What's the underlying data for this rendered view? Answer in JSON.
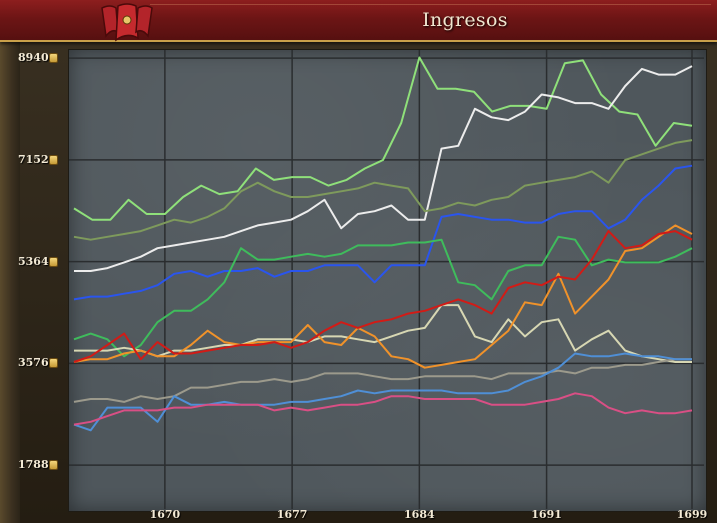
{
  "window": {
    "title": "Ingresos"
  },
  "chart_data": {
    "type": "line",
    "title": "Ingresos",
    "x_ticks": [
      1670,
      1677,
      1684,
      1691,
      1699
    ],
    "y_ticks": [
      "8940",
      "7152",
      "5364",
      "3576",
      "1788"
    ],
    "y_values": [
      8940,
      7152,
      5364,
      3576,
      1788
    ],
    "xlim": [
      1665,
      1699
    ],
    "ylim": [
      1000,
      9100
    ],
    "grid": true,
    "series": [
      {
        "color": "#8fe07a",
        "values": [
          6300,
          6100,
          6100,
          6450,
          6200,
          6200,
          6500,
          6700,
          6550,
          6600,
          7000,
          6800,
          6850,
          6850,
          6700,
          6800,
          7000,
          7150,
          7800,
          8950,
          8400,
          8400,
          8350,
          8000,
          8100,
          8100,
          8050,
          8850,
          8900,
          8300,
          8000,
          7950,
          7400,
          7800,
          7750
        ]
      },
      {
        "color": "#ececec",
        "values": [
          5200,
          5200,
          5250,
          5350,
          5450,
          5600,
          5650,
          5700,
          5750,
          5800,
          5900,
          6000,
          6050,
          6100,
          6250,
          6450,
          5950,
          6200,
          6250,
          6350,
          6100,
          6100,
          7350,
          7400,
          8050,
          7900,
          7850,
          8000,
          8300,
          8250,
          8150,
          8150,
          8050,
          8450,
          8750,
          8650,
          8650,
          8800
        ]
      },
      {
        "color": "#7e9a5c",
        "values": [
          5800,
          5750,
          5800,
          5850,
          5900,
          6000,
          6100,
          6050,
          6150,
          6300,
          6600,
          6750,
          6600,
          6500,
          6500,
          6550,
          6600,
          6650,
          6750,
          6700,
          6650,
          6250,
          6300,
          6400,
          6350,
          6450,
          6500,
          6700,
          6750,
          6800,
          6850,
          6950,
          6750,
          7150,
          7250,
          7350,
          7450,
          7500
        ]
      },
      {
        "color": "#2a55ee",
        "values": [
          4700,
          4750,
          4750,
          4800,
          4850,
          4950,
          5150,
          5200,
          5100,
          5200,
          5200,
          5250,
          5100,
          5200,
          5200,
          5300,
          5300,
          5300,
          5000,
          5300,
          5300,
          5300,
          6150,
          6200,
          6150,
          6100,
          6100,
          6050,
          6050,
          6200,
          6250,
          6250,
          5950,
          6100,
          6450,
          6700,
          7000,
          7050
        ]
      },
      {
        "color": "#3fbc5c",
        "values": [
          4000,
          4100,
          4000,
          3700,
          3900,
          4300,
          4500,
          4500,
          4700,
          5000,
          5600,
          5400,
          5400,
          5450,
          5500,
          5450,
          5500,
          5650,
          5650,
          5650,
          5700,
          5700,
          5750,
          5000,
          4950,
          4700,
          5200,
          5300,
          5300,
          5800,
          5750,
          5300,
          5400,
          5350,
          5350,
          5350,
          5450,
          5600
        ]
      },
      {
        "color": "#d7d7b3",
        "values": [
          3800,
          3800,
          3800,
          3850,
          3800,
          3700,
          3800,
          3800,
          3850,
          3900,
          3900,
          4000,
          4000,
          4000,
          3950,
          4050,
          4050,
          4000,
          3950,
          4050,
          4150,
          4200,
          4600,
          4600,
          4050,
          3950,
          4350,
          4050,
          4300,
          4350,
          3800,
          4000,
          4150,
          3800,
          3700,
          3650,
          3600,
          3600
        ]
      },
      {
        "color": "#f0922a",
        "values": [
          3600,
          3650,
          3650,
          3750,
          3800,
          3700,
          3700,
          3900,
          4150,
          3950,
          3900,
          3950,
          3950,
          3950,
          4250,
          3950,
          3900,
          4200,
          4050,
          3700,
          3650,
          3500,
          3550,
          3600,
          3650,
          3900,
          4150,
          4650,
          4600,
          5150,
          4450,
          4750,
          5050,
          5550,
          5600,
          5800,
          6000,
          5850
        ]
      },
      {
        "color": "#d21b16",
        "values": [
          3600,
          3700,
          3900,
          4100,
          3650,
          3950,
          3750,
          3750,
          3800,
          3850,
          3900,
          3900,
          3950,
          3850,
          3950,
          4150,
          4300,
          4200,
          4300,
          4350,
          4450,
          4500,
          4600,
          4700,
          4600,
          4450,
          4900,
          5000,
          4950,
          5100,
          5050,
          5400,
          5900,
          5600,
          5650,
          5850,
          5900,
          5750
        ]
      },
      {
        "color": "#9c9a8c",
        "values": [
          2900,
          2950,
          2950,
          2900,
          3000,
          2950,
          3000,
          3150,
          3150,
          3200,
          3250,
          3250,
          3300,
          3250,
          3300,
          3400,
          3400,
          3400,
          3350,
          3300,
          3300,
          3350,
          3350,
          3350,
          3350,
          3300,
          3400,
          3400,
          3400,
          3450,
          3400,
          3500,
          3500,
          3550,
          3550,
          3600,
          3650,
          3650
        ]
      },
      {
        "color": "#4f8fd6",
        "values": [
          2500,
          2400,
          2800,
          2800,
          2800,
          2550,
          3000,
          2850,
          2850,
          2900,
          2850,
          2850,
          2850,
          2900,
          2900,
          2950,
          3000,
          3100,
          3050,
          3100,
          3100,
          3100,
          3100,
          3050,
          3050,
          3050,
          3100,
          3250,
          3350,
          3500,
          3750,
          3700,
          3700,
          3750,
          3700,
          3700,
          3650,
          3650
        ]
      },
      {
        "color": "#d94f85",
        "values": [
          2500,
          2550,
          2650,
          2750,
          2750,
          2750,
          2800,
          2800,
          2850,
          2850,
          2850,
          2850,
          2750,
          2800,
          2750,
          2800,
          2850,
          2850,
          2900,
          3000,
          3000,
          2950,
          2950,
          2950,
          2950,
          2850,
          2850,
          2850,
          2900,
          2950,
          3050,
          3000,
          2800,
          2700,
          2750,
          2700,
          2700,
          2750
        ]
      }
    ]
  }
}
